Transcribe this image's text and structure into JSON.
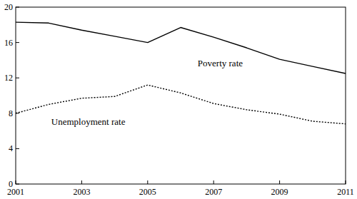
{
  "chart_data": {
    "type": "line",
    "x": [
      2001,
      2002,
      2003,
      2004,
      2005,
      2006,
      2007,
      2008,
      2009,
      2010,
      2011
    ],
    "series": [
      {
        "name": "Poverty rate",
        "color": "#000000",
        "line_style": "solid",
        "values": [
          18.3,
          18.2,
          17.4,
          16.7,
          16.0,
          17.7,
          16.6,
          15.4,
          14.1,
          13.3,
          12.5
        ]
      },
      {
        "name": "Unemployment rate",
        "color": "#000000",
        "line_style": "dotted",
        "values": [
          8.0,
          9.0,
          9.7,
          9.9,
          11.2,
          10.3,
          9.1,
          8.4,
          7.9,
          7.1,
          6.8
        ]
      }
    ],
    "xlim": [
      2001,
      2011
    ],
    "xticks": [
      2001,
      2003,
      2005,
      2007,
      2009,
      2011
    ],
    "ylim": [
      0,
      20
    ],
    "yticks": [
      0,
      4,
      8,
      12,
      16,
      20
    ],
    "grid": false
  }
}
